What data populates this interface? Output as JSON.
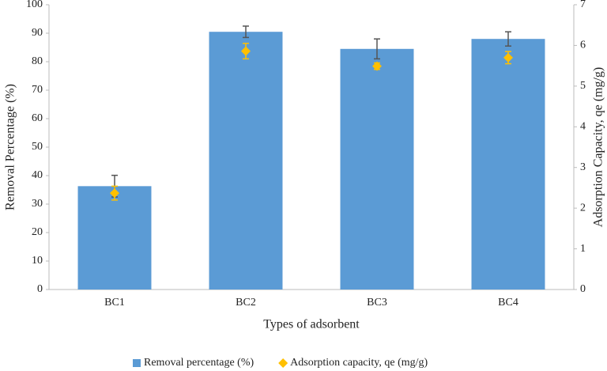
{
  "chart_data": {
    "type": "bar",
    "categories": [
      "BC1",
      "BC2",
      "BC3",
      "BC4"
    ],
    "x_label": "Types of adsorbent",
    "y_label": "Removal Percentage (%)",
    "y2_label": "Adsorption Capacity, qe (mg/g)",
    "ylim": [
      0,
      100
    ],
    "yticks": [
      0,
      10,
      20,
      30,
      40,
      50,
      60,
      70,
      80,
      90,
      100
    ],
    "y2lim": [
      0,
      7
    ],
    "y2ticks": [
      0,
      1,
      2,
      3,
      4,
      5,
      6,
      7
    ],
    "legend": "bottom",
    "series": [
      {
        "name": "Removal percentage (%)",
        "type": "bar",
        "color": "#5b9bd5",
        "error_color": "#555555",
        "values": [
          36.3,
          90.5,
          84.5,
          88
        ],
        "errors": [
          3.8,
          2,
          3.5,
          2.5
        ]
      },
      {
        "name": "Adsorption capacity, qe (mg/g)",
        "type": "scatter",
        "axis": "y2",
        "color": "#ffc000",
        "error_color": "#ffc000",
        "values": [
          2.37,
          5.86,
          5.49,
          5.7
        ],
        "errors": [
          0.17,
          0.19,
          0.08,
          0.15
        ]
      }
    ]
  }
}
